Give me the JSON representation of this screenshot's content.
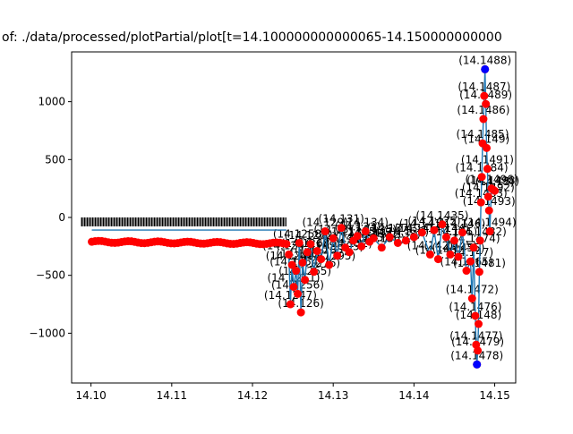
{
  "chart_data": {
    "type": "line",
    "title": "of: ./data/processed/plotPartial/plot[t=14.100000000000065-14.150000000000",
    "xlabel": "",
    "ylabel": "",
    "xlim": [
      14.0976,
      14.1526
    ],
    "ylim": [
      -1430,
      1430
    ],
    "grid": false,
    "legend": "none",
    "colors": {
      "line": "#1f77b4",
      "points": "#ff0000",
      "extreme_points": "#0000ff"
    },
    "x_ticks": [
      {
        "value": 14.1,
        "label": "14.10"
      },
      {
        "value": 14.11,
        "label": "14.11"
      },
      {
        "value": 14.12,
        "label": "14.12"
      },
      {
        "value": 14.13,
        "label": "14.13"
      },
      {
        "value": 14.14,
        "label": "14.14"
      },
      {
        "value": 14.15,
        "label": "14.15"
      }
    ],
    "y_ticks": [
      {
        "value": 1000,
        "label": "1000"
      },
      {
        "value": 500,
        "label": "500"
      },
      {
        "value": 0,
        "label": "0"
      },
      {
        "value": -500,
        "label": "−500"
      },
      {
        "value": -1000,
        "label": "−1000"
      }
    ],
    "smooth_band": {
      "x_start": 14.1001,
      "x_end": 14.1242,
      "red_y_start": -210,
      "red_y_end": -225,
      "label_y": -70
    },
    "series": [
      {
        "x": [
          14.1245,
          14.1247,
          14.1249,
          14.1251,
          14.1254,
          14.1256,
          14.1258,
          14.126,
          14.1262,
          14.1265,
          14.1268,
          14.1272,
          14.1276,
          14.128,
          14.1285,
          14.129,
          14.1295,
          14.13,
          14.1305,
          14.131,
          14.1315,
          14.132,
          14.1325,
          14.133,
          14.1335,
          14.134,
          14.1345,
          14.135,
          14.136,
          14.137,
          14.138,
          14.139,
          14.14,
          14.141,
          14.142,
          14.1425,
          14.143,
          14.1435,
          14.144,
          14.1445,
          14.145,
          14.1455,
          14.146,
          14.1465,
          14.147,
          14.1472,
          14.1474,
          14.1476,
          14.1477,
          14.1478,
          14.1479,
          14.148,
          14.1481,
          14.1482,
          14.1483,
          14.1484,
          14.1485,
          14.1486,
          14.1487,
          14.1488,
          14.1489,
          14.149,
          14.1491,
          14.1492,
          14.1493,
          14.1494,
          14.1496,
          14.1498,
          14.15
        ],
        "y": [
          -320,
          -750,
          -410,
          -600,
          -460,
          -660,
          -220,
          -820,
          -390,
          -540,
          -300,
          -230,
          -470,
          -290,
          -360,
          -120,
          -410,
          -180,
          -330,
          -90,
          -260,
          -300,
          -200,
          -160,
          -250,
          -120,
          -210,
          -180,
          -260,
          -170,
          -220,
          -200,
          -170,
          -130,
          -320,
          -110,
          -360,
          -60,
          -170,
          -320,
          -200,
          -340,
          -130,
          -460,
          -380,
          -700,
          -260,
          -850,
          -1100,
          -1270,
          -1150,
          -920,
          -470,
          -200,
          130,
          350,
          640,
          850,
          1050,
          1280,
          980,
          600,
          420,
          180,
          60,
          -120,
          250,
          240,
          230
        ]
      }
    ],
    "annotations": [
      {
        "x": 14.1245,
        "y": -320,
        "label": "(14.1245)"
      },
      {
        "x": 14.1247,
        "y": -750,
        "label": "(14.1247)"
      },
      {
        "x": 14.1249,
        "y": -410,
        "label": "(14.1249)"
      },
      {
        "x": 14.1251,
        "y": -600,
        "label": "(14.1251)"
      },
      {
        "x": 14.1254,
        "y": -460,
        "label": "(14.1254)"
      },
      {
        "x": 14.1256,
        "y": -660,
        "label": "(14.1256)"
      },
      {
        "x": 14.1258,
        "y": -220,
        "label": "(14.1258)"
      },
      {
        "x": 14.126,
        "y": -820,
        "label": "(14.126)"
      },
      {
        "x": 14.1262,
        "y": -390,
        "label": "(14.1262)"
      },
      {
        "x": 14.1265,
        "y": -540,
        "label": "(14.1265)"
      },
      {
        "x": 14.1268,
        "y": -300,
        "label": "(14.1268)"
      },
      {
        "x": 14.1272,
        "y": -230,
        "label": "(14.1272)"
      },
      {
        "x": 14.1276,
        "y": -470,
        "label": "(14.1276)"
      },
      {
        "x": 14.128,
        "y": -290,
        "label": "(14.128)"
      },
      {
        "x": 14.1285,
        "y": -360,
        "label": "(14.1285)"
      },
      {
        "x": 14.129,
        "y": -120,
        "label": "(14.129)"
      },
      {
        "x": 14.1295,
        "y": -410,
        "label": "(14.1295)"
      },
      {
        "x": 14.13,
        "y": -180,
        "label": "(14.13)"
      },
      {
        "x": 14.1305,
        "y": -330,
        "label": "(14.1305)"
      },
      {
        "x": 14.131,
        "y": -90,
        "label": "(14.131)"
      },
      {
        "x": 14.1315,
        "y": -260,
        "label": "(14.1315)"
      },
      {
        "x": 14.132,
        "y": -300,
        "label": "(14.132)"
      },
      {
        "x": 14.1325,
        "y": -200,
        "label": "(14.1325)"
      },
      {
        "x": 14.133,
        "y": -160,
        "label": "(14.133)"
      },
      {
        "x": 14.1335,
        "y": -250,
        "label": "(14.1335)"
      },
      {
        "x": 14.134,
        "y": -120,
        "label": "(14.134)"
      },
      {
        "x": 14.1345,
        "y": -210,
        "label": "(14.1345)"
      },
      {
        "x": 14.135,
        "y": -180,
        "label": "(14.135)"
      },
      {
        "x": 14.136,
        "y": -260,
        "label": "(14.136)"
      },
      {
        "x": 14.137,
        "y": -170,
        "label": "(14.137)"
      },
      {
        "x": 14.138,
        "y": -220,
        "label": "(14.138)"
      },
      {
        "x": 14.139,
        "y": -200,
        "label": "(14.139)"
      },
      {
        "x": 14.14,
        "y": -170,
        "label": "(14.14)"
      },
      {
        "x": 14.141,
        "y": -130,
        "label": "(14.141)"
      },
      {
        "x": 14.142,
        "y": -320,
        "label": "(14.142)"
      },
      {
        "x": 14.1425,
        "y": -110,
        "label": "(14.1425)"
      },
      {
        "x": 14.143,
        "y": -360,
        "label": "(14.143)"
      },
      {
        "x": 14.1435,
        "y": -60,
        "label": "(14.1435)"
      },
      {
        "x": 14.144,
        "y": -170,
        "label": "(14.144)"
      },
      {
        "x": 14.1445,
        "y": -320,
        "label": "(14.1445)"
      },
      {
        "x": 14.145,
        "y": -200,
        "label": "(14.145)"
      },
      {
        "x": 14.1455,
        "y": -340,
        "label": "(14.1455)"
      },
      {
        "x": 14.146,
        "y": -130,
        "label": "(14.146)"
      },
      {
        "x": 14.1465,
        "y": -460,
        "label": "(14.1465)"
      },
      {
        "x": 14.147,
        "y": -380,
        "label": "(14.147)"
      },
      {
        "x": 14.1472,
        "y": -700,
        "label": "(14.1472)"
      },
      {
        "x": 14.1474,
        "y": -260,
        "label": "(14.1474)"
      },
      {
        "x": 14.1476,
        "y": -850,
        "label": "(14.1476)"
      },
      {
        "x": 14.1477,
        "y": -1100,
        "label": "(14.1477)"
      },
      {
        "x": 14.1478,
        "y": -1270,
        "label": "(14.1478)"
      },
      {
        "x": 14.1479,
        "y": -1150,
        "label": "(14.1479)"
      },
      {
        "x": 14.148,
        "y": -920,
        "label": "(14.148)"
      },
      {
        "x": 14.1481,
        "y": -470,
        "label": "(14.1481)"
      },
      {
        "x": 14.1482,
        "y": -200,
        "label": "(14.1482)"
      },
      {
        "x": 14.1483,
        "y": 130,
        "label": "(14.1483)"
      },
      {
        "x": 14.1484,
        "y": 350,
        "label": "(14.1484)"
      },
      {
        "x": 14.1485,
        "y": 640,
        "label": "(14.1485)"
      },
      {
        "x": 14.1486,
        "y": 850,
        "label": "(14.1486)"
      },
      {
        "x": 14.1487,
        "y": 1050,
        "label": "(14.1487)"
      },
      {
        "x": 14.1488,
        "y": 1280,
        "label": "(14.1488)"
      },
      {
        "x": 14.1489,
        "y": 980,
        "label": "(14.1489)"
      },
      {
        "x": 14.149,
        "y": 600,
        "label": "(14.149)"
      },
      {
        "x": 14.1491,
        "y": 420,
        "label": "(14.1491)"
      },
      {
        "x": 14.1492,
        "y": 180,
        "label": "(14.1492)"
      },
      {
        "x": 14.1493,
        "y": 60,
        "label": "(14.1493)"
      },
      {
        "x": 14.1494,
        "y": -120,
        "label": "(14.1494)"
      },
      {
        "x": 14.1496,
        "y": 250,
        "label": "(14.1496)"
      },
      {
        "x": 14.1498,
        "y": 240,
        "label": "(14.1498)"
      },
      {
        "x": 14.15,
        "y": 230,
        "label": "(14.15)"
      }
    ],
    "extreme_points": [
      {
        "x": 14.1488,
        "y": 1280
      },
      {
        "x": 14.1478,
        "y": -1270
      }
    ]
  }
}
